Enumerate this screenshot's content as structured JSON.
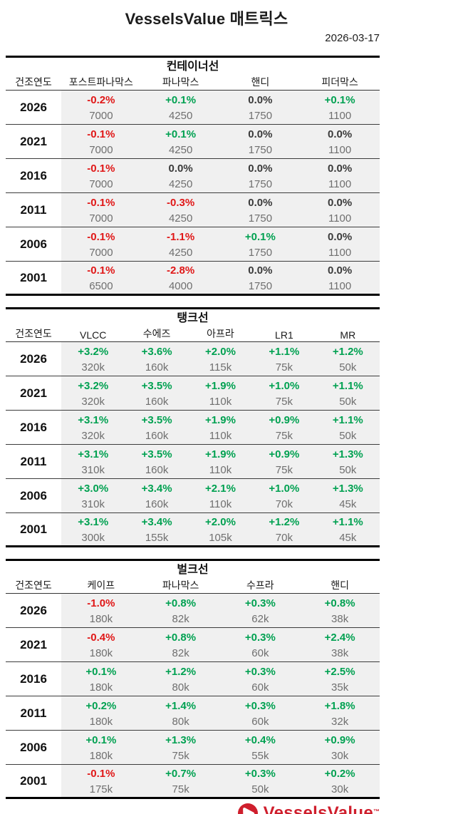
{
  "page": {
    "title": "VesselsValue 매트릭스",
    "date": "2026-03-17"
  },
  "colors": {
    "up": "#00a151",
    "down": "#e01717",
    "flat": "#3a3a3a",
    "brand_red": "#cf1f2d",
    "row_stripe": "#f0f0f0"
  },
  "sections": [
    {
      "title": "컨테이너선",
      "year_header": "건조연도",
      "columns": [
        "포스트파나막스",
        "파나막스",
        "핸디",
        "피더막스"
      ],
      "rows": [
        {
          "year": "2026",
          "cells": [
            {
              "pct": "-0.2%",
              "value": "7000",
              "trend": "down"
            },
            {
              "pct": "+0.1%",
              "value": "4250",
              "trend": "up"
            },
            {
              "pct": "0.0%",
              "value": "1750",
              "trend": "flat"
            },
            {
              "pct": "+0.1%",
              "value": "1100",
              "trend": "up"
            }
          ]
        },
        {
          "year": "2021",
          "cells": [
            {
              "pct": "-0.1%",
              "value": "7000",
              "trend": "down"
            },
            {
              "pct": "+0.1%",
              "value": "4250",
              "trend": "up"
            },
            {
              "pct": "0.0%",
              "value": "1750",
              "trend": "flat"
            },
            {
              "pct": "0.0%",
              "value": "1100",
              "trend": "flat"
            }
          ]
        },
        {
          "year": "2016",
          "cells": [
            {
              "pct": "-0.1%",
              "value": "7000",
              "trend": "down"
            },
            {
              "pct": "0.0%",
              "value": "4250",
              "trend": "flat"
            },
            {
              "pct": "0.0%",
              "value": "1750",
              "trend": "flat"
            },
            {
              "pct": "0.0%",
              "value": "1100",
              "trend": "flat"
            }
          ]
        },
        {
          "year": "2011",
          "cells": [
            {
              "pct": "-0.1%",
              "value": "7000",
              "trend": "down"
            },
            {
              "pct": "-0.3%",
              "value": "4250",
              "trend": "down"
            },
            {
              "pct": "0.0%",
              "value": "1750",
              "trend": "flat"
            },
            {
              "pct": "0.0%",
              "value": "1100",
              "trend": "flat"
            }
          ]
        },
        {
          "year": "2006",
          "cells": [
            {
              "pct": "-0.1%",
              "value": "7000",
              "trend": "down"
            },
            {
              "pct": "-1.1%",
              "value": "4250",
              "trend": "down"
            },
            {
              "pct": "+0.1%",
              "value": "1750",
              "trend": "up"
            },
            {
              "pct": "0.0%",
              "value": "1100",
              "trend": "flat"
            }
          ]
        },
        {
          "year": "2001",
          "cells": [
            {
              "pct": "-0.1%",
              "value": "6500",
              "trend": "down"
            },
            {
              "pct": "-2.8%",
              "value": "4000",
              "trend": "down"
            },
            {
              "pct": "0.0%",
              "value": "1750",
              "trend": "flat"
            },
            {
              "pct": "0.0%",
              "value": "1100",
              "trend": "flat"
            }
          ]
        }
      ]
    },
    {
      "title": "탱크선",
      "year_header": "건조연도",
      "columns": [
        "VLCC",
        "수에즈",
        "아프라",
        "LR1",
        "MR"
      ],
      "rows": [
        {
          "year": "2026",
          "cells": [
            {
              "pct": "+3.2%",
              "value": "320k",
              "trend": "up"
            },
            {
              "pct": "+3.6%",
              "value": "160k",
              "trend": "up"
            },
            {
              "pct": "+2.0%",
              "value": "115k",
              "trend": "up"
            },
            {
              "pct": "+1.1%",
              "value": "75k",
              "trend": "up"
            },
            {
              "pct": "+1.2%",
              "value": "50k",
              "trend": "up"
            }
          ]
        },
        {
          "year": "2021",
          "cells": [
            {
              "pct": "+3.2%",
              "value": "320k",
              "trend": "up"
            },
            {
              "pct": "+3.5%",
              "value": "160k",
              "trend": "up"
            },
            {
              "pct": "+1.9%",
              "value": "110k",
              "trend": "up"
            },
            {
              "pct": "+1.0%",
              "value": "75k",
              "trend": "up"
            },
            {
              "pct": "+1.1%",
              "value": "50k",
              "trend": "up"
            }
          ]
        },
        {
          "year": "2016",
          "cells": [
            {
              "pct": "+3.1%",
              "value": "320k",
              "trend": "up"
            },
            {
              "pct": "+3.5%",
              "value": "160k",
              "trend": "up"
            },
            {
              "pct": "+1.9%",
              "value": "110k",
              "trend": "up"
            },
            {
              "pct": "+0.9%",
              "value": "75k",
              "trend": "up"
            },
            {
              "pct": "+1.1%",
              "value": "50k",
              "trend": "up"
            }
          ]
        },
        {
          "year": "2011",
          "cells": [
            {
              "pct": "+3.1%",
              "value": "310k",
              "trend": "up"
            },
            {
              "pct": "+3.5%",
              "value": "160k",
              "trend": "up"
            },
            {
              "pct": "+1.9%",
              "value": "110k",
              "trend": "up"
            },
            {
              "pct": "+0.9%",
              "value": "75k",
              "trend": "up"
            },
            {
              "pct": "+1.3%",
              "value": "50k",
              "trend": "up"
            }
          ]
        },
        {
          "year": "2006",
          "cells": [
            {
              "pct": "+3.0%",
              "value": "310k",
              "trend": "up"
            },
            {
              "pct": "+3.4%",
              "value": "160k",
              "trend": "up"
            },
            {
              "pct": "+2.1%",
              "value": "110k",
              "trend": "up"
            },
            {
              "pct": "+1.0%",
              "value": "70k",
              "trend": "up"
            },
            {
              "pct": "+1.3%",
              "value": "45k",
              "trend": "up"
            }
          ]
        },
        {
          "year": "2001",
          "cells": [
            {
              "pct": "+3.1%",
              "value": "300k",
              "trend": "up"
            },
            {
              "pct": "+3.4%",
              "value": "155k",
              "trend": "up"
            },
            {
              "pct": "+2.0%",
              "value": "105k",
              "trend": "up"
            },
            {
              "pct": "+1.2%",
              "value": "70k",
              "trend": "up"
            },
            {
              "pct": "+1.1%",
              "value": "45k",
              "trend": "up"
            }
          ]
        }
      ]
    },
    {
      "title": "벌크선",
      "year_header": "건조연도",
      "columns": [
        "케이프",
        "파나막스",
        "수프라",
        "핸디"
      ],
      "rows": [
        {
          "year": "2026",
          "cells": [
            {
              "pct": "-1.0%",
              "value": "180k",
              "trend": "down"
            },
            {
              "pct": "+0.8%",
              "value": "82k",
              "trend": "up"
            },
            {
              "pct": "+0.3%",
              "value": "62k",
              "trend": "up"
            },
            {
              "pct": "+0.8%",
              "value": "38k",
              "trend": "up"
            }
          ]
        },
        {
          "year": "2021",
          "cells": [
            {
              "pct": "-0.4%",
              "value": "180k",
              "trend": "down"
            },
            {
              "pct": "+0.8%",
              "value": "82k",
              "trend": "up"
            },
            {
              "pct": "+0.3%",
              "value": "60k",
              "trend": "up"
            },
            {
              "pct": "+2.4%",
              "value": "38k",
              "trend": "up"
            }
          ]
        },
        {
          "year": "2016",
          "cells": [
            {
              "pct": "+0.1%",
              "value": "180k",
              "trend": "up"
            },
            {
              "pct": "+1.2%",
              "value": "80k",
              "trend": "up"
            },
            {
              "pct": "+0.3%",
              "value": "60k",
              "trend": "up"
            },
            {
              "pct": "+2.5%",
              "value": "35k",
              "trend": "up"
            }
          ]
        },
        {
          "year": "2011",
          "cells": [
            {
              "pct": "+0.2%",
              "value": "180k",
              "trend": "up"
            },
            {
              "pct": "+1.4%",
              "value": "80k",
              "trend": "up"
            },
            {
              "pct": "+0.3%",
              "value": "60k",
              "trend": "up"
            },
            {
              "pct": "+1.8%",
              "value": "32k",
              "trend": "up"
            }
          ]
        },
        {
          "year": "2006",
          "cells": [
            {
              "pct": "+0.1%",
              "value": "180k",
              "trend": "up"
            },
            {
              "pct": "+1.3%",
              "value": "75k",
              "trend": "up"
            },
            {
              "pct": "+0.4%",
              "value": "55k",
              "trend": "up"
            },
            {
              "pct": "+0.9%",
              "value": "30k",
              "trend": "up"
            }
          ]
        },
        {
          "year": "2001",
          "cells": [
            {
              "pct": "-0.1%",
              "value": "175k",
              "trend": "down"
            },
            {
              "pct": "+0.7%",
              "value": "75k",
              "trend": "up"
            },
            {
              "pct": "+0.3%",
              "value": "50k",
              "trend": "up"
            },
            {
              "pct": "+0.2%",
              "value": "30k",
              "trend": "up"
            }
          ]
        }
      ]
    }
  ],
  "footer": {
    "brand": "VesselsValue",
    "tm": "™"
  }
}
